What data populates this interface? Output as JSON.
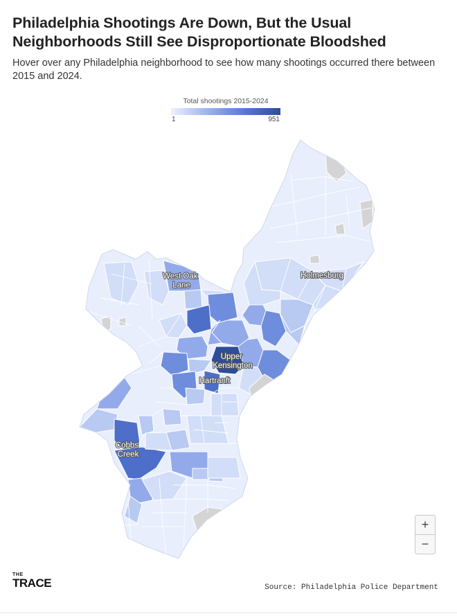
{
  "headline": "Philadelphia Shootings Are Down, But the Usual Neighborhoods Still See Disproportionate Bloodshed",
  "dek": "Hover over any Philadelphia neighborhood to see how many shootings occurred there between 2015 and 2024.",
  "legend": {
    "title": "Total shootings 2015-2024",
    "min_label": "1",
    "max_label": "951",
    "colors": [
      "#eef2fd",
      "#9db2ee",
      "#5a78d6",
      "#2f4c98"
    ]
  },
  "map": {
    "neighborhoods": [
      {
        "id": "west-oak-lane",
        "lines": [
          "West Oak",
          "Lane"
        ]
      },
      {
        "id": "holmesburg",
        "lines": [
          "Holmesburg"
        ]
      },
      {
        "id": "upper-kensington",
        "lines": [
          "Upper",
          "Kensington"
        ]
      },
      {
        "id": "hartranft",
        "lines": [
          "Hartranft"
        ]
      },
      {
        "id": "cobbs-creek",
        "lines": [
          "Cobbs",
          "Creek"
        ]
      }
    ],
    "colors": {
      "base": "#e8eefc",
      "light": "#d2ddf8",
      "medium_light": "#b8c9f2",
      "medium": "#93aaea",
      "medium_dark": "#6f8ddd",
      "dark": "#4d6ec9",
      "darkest": "#2f4c98",
      "no_data": "#d4d4d4",
      "border": "#ffffff"
    }
  },
  "zoom": {
    "in_label": "+",
    "out_label": "−"
  },
  "logo": {
    "top": "THE",
    "main": "TRACE"
  },
  "source": "Source: Philadelphia Police Department"
}
